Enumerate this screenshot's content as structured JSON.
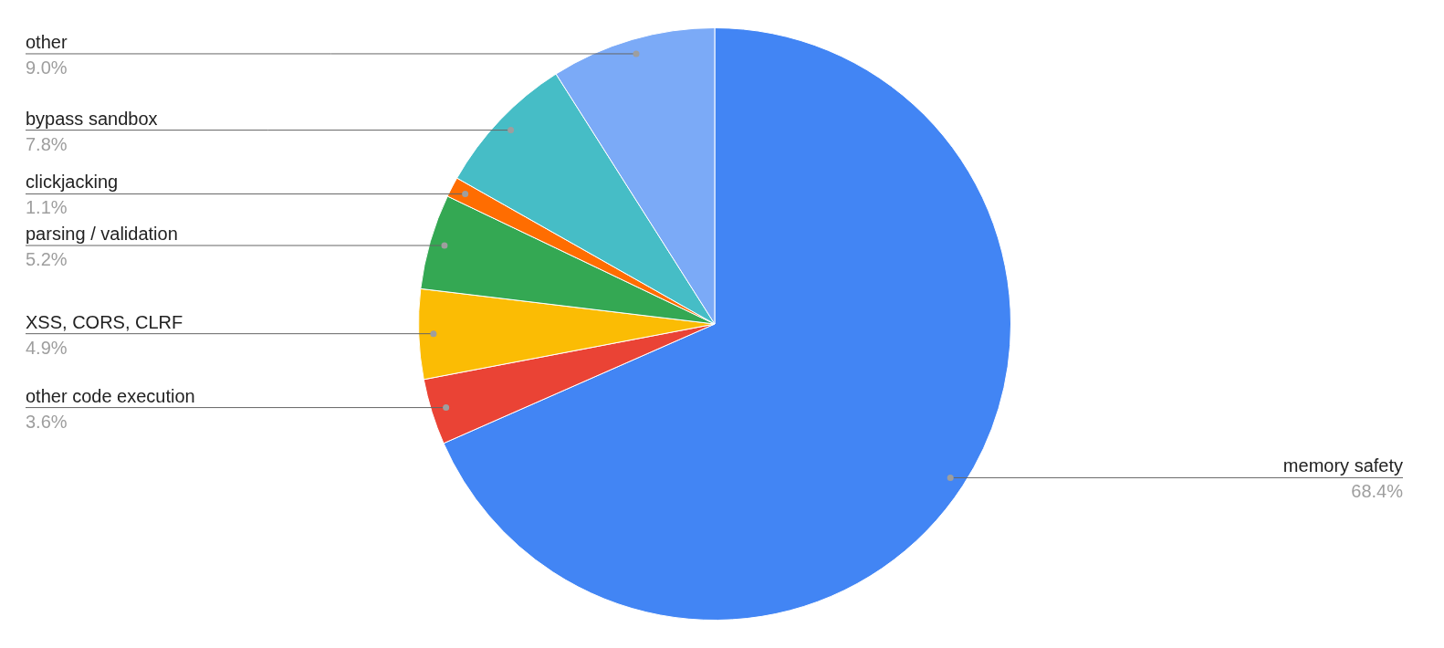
{
  "chart_data": {
    "type": "pie",
    "categories": [
      "memory safety",
      "other code execution",
      "XSS, CORS, CLRF",
      "parsing / validation",
      "clickjacking",
      "bypass sandbox",
      "other"
    ],
    "values": [
      68.4,
      3.6,
      4.9,
      5.2,
      1.1,
      7.8,
      9.0
    ],
    "value_labels": [
      "68.4%",
      "3.6%",
      "4.9%",
      "5.2%",
      "1.1%",
      "7.8%",
      "9.0%"
    ],
    "colors": [
      "#4285f4",
      "#ea4335",
      "#fbbc04",
      "#34a853",
      "#ff6d01",
      "#46bdc6",
      "#7baaf7"
    ],
    "data_labels": true
  }
}
